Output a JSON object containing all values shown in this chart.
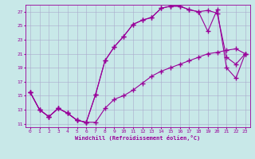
{
  "xlabel": "Windchill (Refroidissement éolien,°C)",
  "bg_color": "#c8e8e8",
  "line_color": "#990099",
  "grid_color": "#aaaacc",
  "xlim": [
    -0.5,
    23.5
  ],
  "ylim": [
    10.5,
    28.0
  ],
  "yticks": [
    11,
    13,
    15,
    17,
    19,
    21,
    23,
    25,
    27
  ],
  "xticks": [
    0,
    1,
    2,
    3,
    4,
    5,
    6,
    7,
    8,
    9,
    10,
    11,
    12,
    13,
    14,
    15,
    16,
    17,
    18,
    19,
    20,
    21,
    22,
    23
  ],
  "line1_x": [
    0,
    1,
    2,
    3,
    4,
    5,
    6,
    7,
    8,
    9,
    10,
    11,
    12,
    13,
    14,
    15,
    16,
    17,
    18,
    19,
    20,
    21,
    22,
    23
  ],
  "line1_y": [
    15.5,
    13.0,
    12.0,
    13.2,
    12.5,
    11.5,
    11.2,
    15.2,
    20.0,
    22.0,
    23.5,
    25.2,
    25.8,
    26.2,
    27.5,
    27.8,
    27.8,
    27.3,
    27.0,
    27.2,
    26.8,
    20.5,
    19.5,
    21.0
  ],
  "line2_x": [
    0,
    1,
    2,
    3,
    4,
    5,
    6,
    7,
    8,
    9,
    10,
    11,
    12,
    13,
    14,
    15,
    16,
    17,
    18,
    19,
    20,
    21,
    22,
    23
  ],
  "line2_y": [
    15.5,
    13.0,
    12.0,
    13.2,
    12.5,
    11.5,
    11.2,
    15.2,
    20.0,
    22.0,
    23.5,
    25.2,
    25.8,
    26.2,
    27.5,
    27.8,
    27.8,
    27.3,
    27.0,
    24.2,
    27.3,
    19.0,
    17.5,
    21.0
  ],
  "line3_x": [
    0,
    1,
    2,
    3,
    4,
    5,
    6,
    7,
    8,
    9,
    10,
    11,
    12,
    13,
    14,
    15,
    16,
    17,
    18,
    19,
    20,
    21,
    22,
    23
  ],
  "line3_y": [
    15.5,
    13.0,
    12.0,
    13.2,
    12.5,
    11.5,
    11.2,
    11.2,
    13.2,
    14.5,
    15.0,
    15.8,
    16.8,
    17.8,
    18.5,
    19.0,
    19.5,
    20.0,
    20.5,
    21.0,
    21.2,
    21.5,
    21.7,
    21.0
  ],
  "marker": "+",
  "markersize": 4,
  "linewidth": 0.8
}
